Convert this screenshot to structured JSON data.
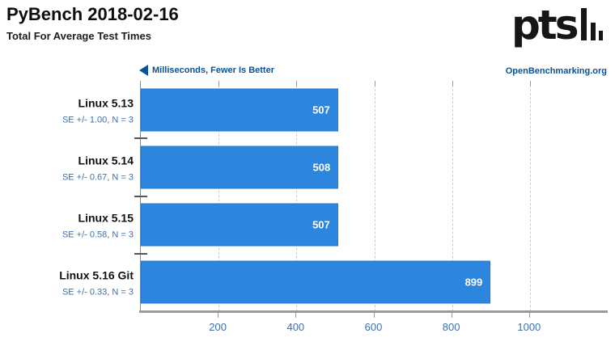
{
  "header": {
    "title": "PyBench 2018-02-16",
    "subtitle": "Total For Average Test Times",
    "logo_text": "pts",
    "watermark": "OpenBenchmarking.org"
  },
  "axis_note": "Milliseconds, Fewer Is Better",
  "chart_data": {
    "type": "bar",
    "orientation": "horizontal",
    "title": "PyBench 2018-02-16",
    "subtitle": "Total For Average Test Times",
    "xlabel": "Milliseconds, Fewer Is Better",
    "lower_is_better": true,
    "categories": [
      "Linux 5.13",
      "Linux 5.14",
      "Linux 5.15",
      "Linux 5.16 Git"
    ],
    "values": [
      507,
      508,
      507,
      899
    ],
    "se_labels": [
      "SE +/- 1.00, N = 3",
      "SE +/- 0.67, N = 3",
      "SE +/- 0.58, N = 3",
      "SE +/- 0.33, N = 3"
    ],
    "x_ticks": [
      200,
      400,
      600,
      800,
      1000
    ],
    "xlim": [
      0,
      1200
    ],
    "grid": "dashed-vertical-gridlines",
    "legend": "none",
    "value_labels": "inside-bar-right-white"
  },
  "colors": {
    "bar": "#2d86de",
    "bar_border": "#2379cf",
    "accent_blue": "#0a5296",
    "label_blue": "#3d6fad",
    "axis_gray": "#9a9a9a",
    "value_text": "#ffffff"
  }
}
